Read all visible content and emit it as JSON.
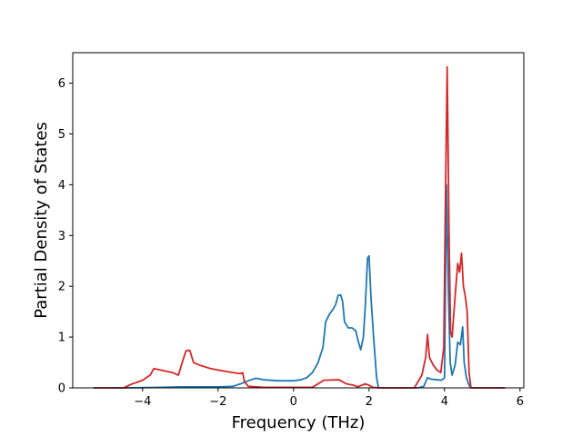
{
  "chart_data": {
    "type": "line",
    "title": "",
    "xlabel": "Frequency (THz)",
    "ylabel": "Partial Density of States",
    "xlim": [
      -5.85,
      6.1
    ],
    "ylim": [
      0,
      6.6
    ],
    "xticks": [
      -4,
      -2,
      0,
      2,
      4,
      6
    ],
    "yticks": [
      0,
      1,
      2,
      3,
      4,
      5,
      6
    ],
    "xtick_labels": [
      "−4",
      "−2",
      "0",
      "2",
      "4",
      "6"
    ],
    "ytick_labels": [
      "0",
      "1",
      "2",
      "3",
      "4",
      "5",
      "6"
    ],
    "grid": false,
    "legend": "none",
    "series": [
      {
        "color": "#1f77b4",
        "points": [
          [
            -5.3,
            0
          ],
          [
            -4.5,
            0
          ],
          [
            -3.5,
            0.01
          ],
          [
            -3.0,
            0.02
          ],
          [
            -2.0,
            0.02
          ],
          [
            -1.6,
            0.03
          ],
          [
            -1.4,
            0.08
          ],
          [
            -1.2,
            0.14
          ],
          [
            -1.0,
            0.19
          ],
          [
            -0.8,
            0.16
          ],
          [
            -0.4,
            0.14
          ],
          [
            0.0,
            0.14
          ],
          [
            0.2,
            0.16
          ],
          [
            0.35,
            0.2
          ],
          [
            0.5,
            0.3
          ],
          [
            0.65,
            0.5
          ],
          [
            0.78,
            0.8
          ],
          [
            0.85,
            1.3
          ],
          [
            0.95,
            1.45
          ],
          [
            1.05,
            1.55
          ],
          [
            1.12,
            1.65
          ],
          [
            1.18,
            1.82
          ],
          [
            1.25,
            1.83
          ],
          [
            1.3,
            1.7
          ],
          [
            1.35,
            1.3
          ],
          [
            1.45,
            1.18
          ],
          [
            1.55,
            1.18
          ],
          [
            1.65,
            1.12
          ],
          [
            1.72,
            0.9
          ],
          [
            1.78,
            0.75
          ],
          [
            1.85,
            1.0
          ],
          [
            1.9,
            1.6
          ],
          [
            1.96,
            2.55
          ],
          [
            2.0,
            2.6
          ],
          [
            2.05,
            1.8
          ],
          [
            2.12,
            1.0
          ],
          [
            2.2,
            0.2
          ],
          [
            2.25,
            0
          ],
          [
            3.3,
            0
          ],
          [
            3.45,
            0.03
          ],
          [
            3.55,
            0.2
          ],
          [
            3.65,
            0.17
          ],
          [
            3.8,
            0.16
          ],
          [
            3.92,
            0.15
          ],
          [
            4.0,
            0.2
          ],
          [
            4.05,
            4.0
          ],
          [
            4.1,
            2.0
          ],
          [
            4.15,
            0.5
          ],
          [
            4.2,
            0.25
          ],
          [
            4.28,
            0.45
          ],
          [
            4.35,
            0.9
          ],
          [
            4.42,
            0.85
          ],
          [
            4.48,
            1.2
          ],
          [
            4.52,
            0.5
          ],
          [
            4.58,
            0.2
          ],
          [
            4.65,
            0.05
          ],
          [
            4.7,
            0
          ],
          [
            5.6,
            0
          ]
        ]
      },
      {
        "color": "#d62728",
        "points": [
          [
            -5.3,
            0
          ],
          [
            -4.5,
            0
          ],
          [
            -4.3,
            0.07
          ],
          [
            -4.0,
            0.15
          ],
          [
            -3.8,
            0.25
          ],
          [
            -3.7,
            0.38
          ],
          [
            -3.4,
            0.33
          ],
          [
            -3.2,
            0.3
          ],
          [
            -3.05,
            0.25
          ],
          [
            -2.95,
            0.5
          ],
          [
            -2.85,
            0.73
          ],
          [
            -2.75,
            0.74
          ],
          [
            -2.65,
            0.5
          ],
          [
            -2.5,
            0.45
          ],
          [
            -2.2,
            0.38
          ],
          [
            -2.0,
            0.35
          ],
          [
            -1.6,
            0.3
          ],
          [
            -1.4,
            0.28
          ],
          [
            -1.35,
            0.3
          ],
          [
            -1.3,
            0.12
          ],
          [
            -1.2,
            0.03
          ],
          [
            -0.8,
            0.01
          ],
          [
            0.5,
            0.01
          ],
          [
            0.8,
            0.15
          ],
          [
            1.2,
            0.16
          ],
          [
            1.4,
            0.08
          ],
          [
            1.6,
            0.05
          ],
          [
            1.7,
            0.02
          ],
          [
            1.9,
            0.08
          ],
          [
            2.0,
            0.05
          ],
          [
            2.1,
            0.01
          ],
          [
            2.3,
            0
          ],
          [
            3.2,
            0
          ],
          [
            3.4,
            0.25
          ],
          [
            3.5,
            0.6
          ],
          [
            3.55,
            1.05
          ],
          [
            3.6,
            0.6
          ],
          [
            3.7,
            0.45
          ],
          [
            3.8,
            0.35
          ],
          [
            3.9,
            0.3
          ],
          [
            3.98,
            0.8
          ],
          [
            4.02,
            3.5
          ],
          [
            4.07,
            6.32
          ],
          [
            4.12,
            3.0
          ],
          [
            4.16,
            1.1
          ],
          [
            4.2,
            1.0
          ],
          [
            4.28,
            1.8
          ],
          [
            4.35,
            2.45
          ],
          [
            4.4,
            2.28
          ],
          [
            4.45,
            2.65
          ],
          [
            4.5,
            2.0
          ],
          [
            4.55,
            1.8
          ],
          [
            4.6,
            1.5
          ],
          [
            4.65,
            0.3
          ],
          [
            4.7,
            0
          ],
          [
            5.6,
            0
          ]
        ]
      }
    ]
  }
}
